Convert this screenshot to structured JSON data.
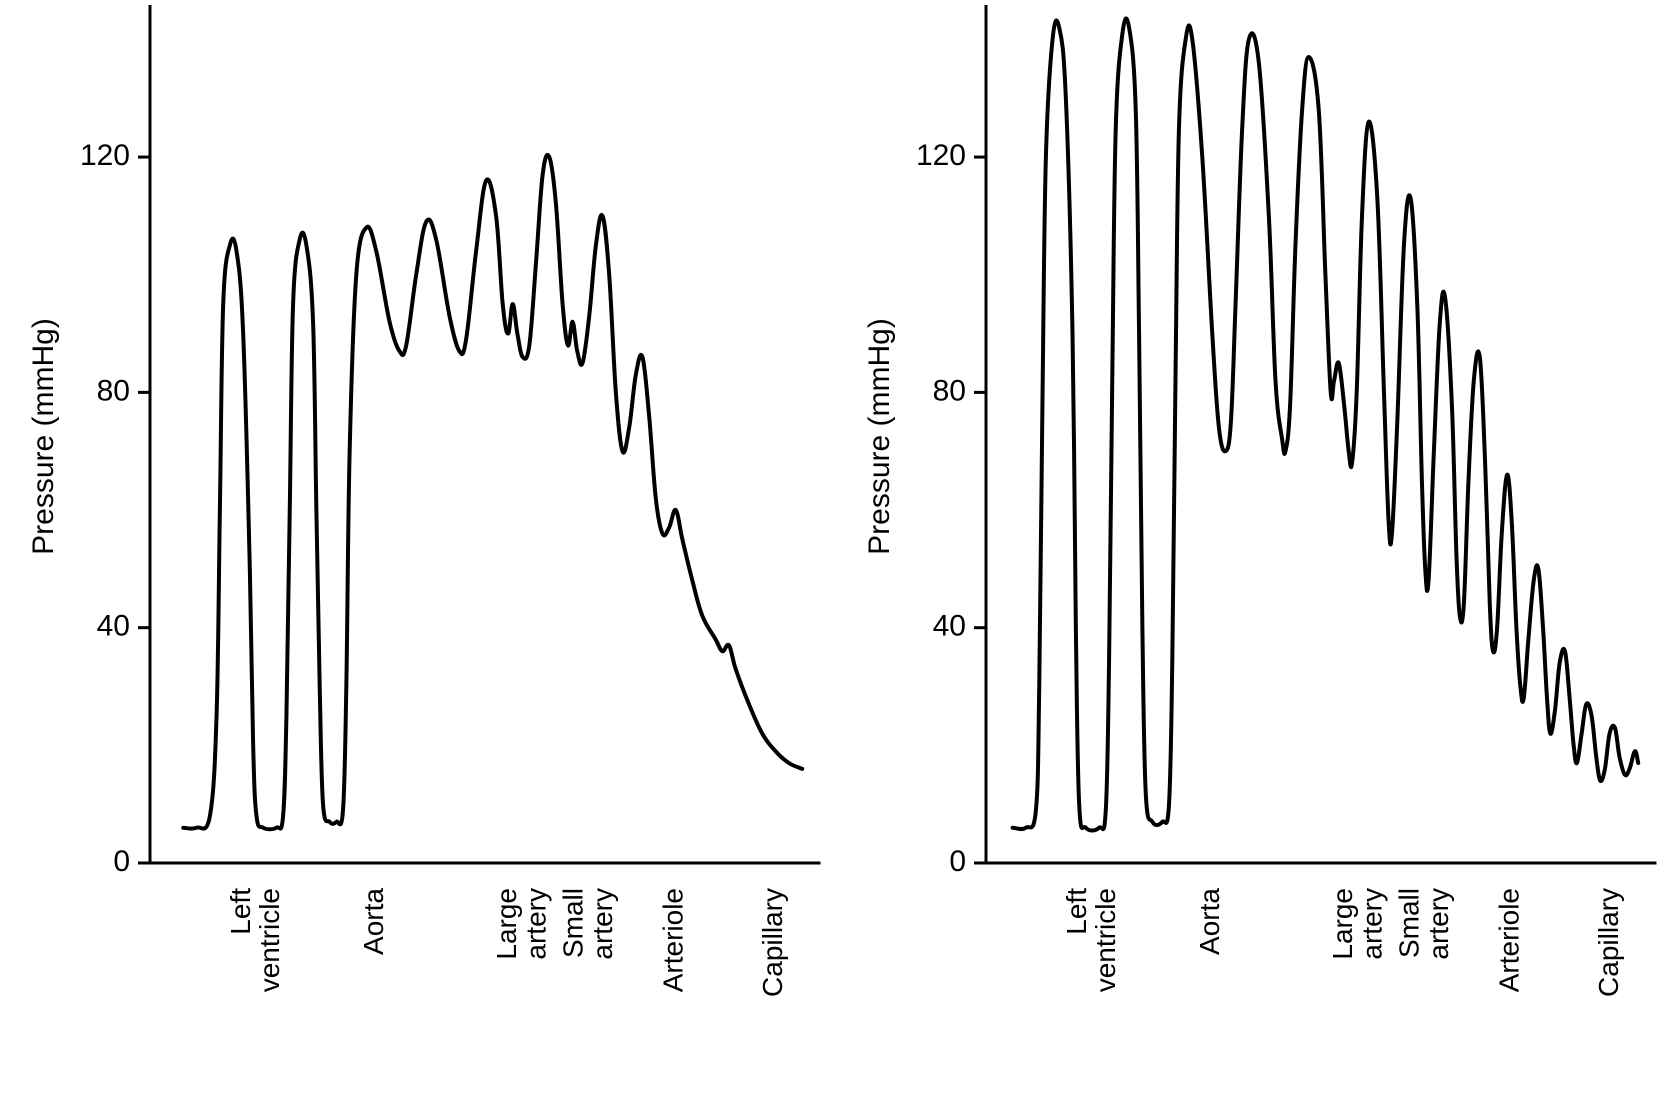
{
  "global": {
    "background_color": "#ffffff",
    "line_color": "#000000",
    "axis_color": "#000000",
    "tick_color": "#000000",
    "line_width": 4,
    "axis_width": 3,
    "tick_width": 3,
    "tick_length": 12,
    "axis_label_fontsize": 30,
    "tick_fontsize": 30,
    "xcat_fontsize": 28,
    "font_family": "Arial, Helvetica, sans-serif"
  },
  "left_chart": {
    "type": "line",
    "ylabel": "Pressure (mmHg)",
    "ylim": [
      0,
      145
    ],
    "yticks": [
      0,
      40,
      80,
      120
    ],
    "ytick_labels": [
      "0",
      "40",
      "80",
      "120"
    ],
    "xlim": [
      0,
      100
    ],
    "x_categories": [
      {
        "label": "Left\nventricle",
        "x": 15
      },
      {
        "label": "Aorta",
        "x": 35
      },
      {
        "label": "Large\nartery",
        "x": 55
      },
      {
        "label": "Small\nartery",
        "x": 65
      },
      {
        "label": "Arteriole",
        "x": 80
      },
      {
        "label": "Capillary",
        "x": 95
      }
    ],
    "series": [
      {
        "x": 5,
        "y": 6
      },
      {
        "x": 7,
        "y": 6
      },
      {
        "x": 9,
        "y": 8
      },
      {
        "x": 10,
        "y": 25
      },
      {
        "x": 10.5,
        "y": 60
      },
      {
        "x": 11,
        "y": 95
      },
      {
        "x": 12,
        "y": 105
      },
      {
        "x": 13,
        "y": 104
      },
      {
        "x": 14,
        "y": 90
      },
      {
        "x": 15,
        "y": 50
      },
      {
        "x": 15.5,
        "y": 20
      },
      {
        "x": 16,
        "y": 8
      },
      {
        "x": 17,
        "y": 6
      },
      {
        "x": 19,
        "y": 6
      },
      {
        "x": 20,
        "y": 8
      },
      {
        "x": 20.5,
        "y": 25
      },
      {
        "x": 21,
        "y": 60
      },
      {
        "x": 21.5,
        "y": 95
      },
      {
        "x": 22.5,
        "y": 106
      },
      {
        "x": 23.5,
        "y": 105
      },
      {
        "x": 24.5,
        "y": 92
      },
      {
        "x": 25,
        "y": 60
      },
      {
        "x": 25.5,
        "y": 30
      },
      {
        "x": 26,
        "y": 10
      },
      {
        "x": 27,
        "y": 7
      },
      {
        "x": 28,
        "y": 7
      },
      {
        "x": 29,
        "y": 9
      },
      {
        "x": 29.5,
        "y": 30
      },
      {
        "x": 30,
        "y": 70
      },
      {
        "x": 31,
        "y": 100
      },
      {
        "x": 32.5,
        "y": 108
      },
      {
        "x": 34,
        "y": 104
      },
      {
        "x": 36,
        "y": 92
      },
      {
        "x": 37.5,
        "y": 87
      },
      {
        "x": 38.5,
        "y": 88
      },
      {
        "x": 40,
        "y": 100
      },
      {
        "x": 41.5,
        "y": 109
      },
      {
        "x": 43,
        "y": 106
      },
      {
        "x": 45,
        "y": 93
      },
      {
        "x": 46.5,
        "y": 87
      },
      {
        "x": 47.5,
        "y": 89
      },
      {
        "x": 49,
        "y": 104
      },
      {
        "x": 50.5,
        "y": 116
      },
      {
        "x": 52,
        "y": 110
      },
      {
        "x": 53,
        "y": 95
      },
      {
        "x": 53.8,
        "y": 90
      },
      {
        "x": 54.5,
        "y": 95
      },
      {
        "x": 55.2,
        "y": 90
      },
      {
        "x": 56,
        "y": 86
      },
      {
        "x": 57,
        "y": 88
      },
      {
        "x": 58,
        "y": 102
      },
      {
        "x": 59,
        "y": 117
      },
      {
        "x": 60,
        "y": 120
      },
      {
        "x": 61,
        "y": 112
      },
      {
        "x": 62,
        "y": 95
      },
      {
        "x": 62.8,
        "y": 88
      },
      {
        "x": 63.5,
        "y": 92
      },
      {
        "x": 64.2,
        "y": 87
      },
      {
        "x": 65,
        "y": 85
      },
      {
        "x": 66,
        "y": 93
      },
      {
        "x": 67,
        "y": 105
      },
      {
        "x": 68,
        "y": 110
      },
      {
        "x": 69,
        "y": 100
      },
      {
        "x": 70,
        "y": 80
      },
      {
        "x": 71,
        "y": 70
      },
      {
        "x": 72,
        "y": 74
      },
      {
        "x": 73,
        "y": 83
      },
      {
        "x": 74,
        "y": 86
      },
      {
        "x": 75,
        "y": 76
      },
      {
        "x": 76,
        "y": 62
      },
      {
        "x": 77,
        "y": 56
      },
      {
        "x": 78,
        "y": 57
      },
      {
        "x": 79,
        "y": 60
      },
      {
        "x": 80,
        "y": 55
      },
      {
        "x": 81.5,
        "y": 48
      },
      {
        "x": 83,
        "y": 42
      },
      {
        "x": 85,
        "y": 38
      },
      {
        "x": 86,
        "y": 36
      },
      {
        "x": 87,
        "y": 37
      },
      {
        "x": 88,
        "y": 33
      },
      {
        "x": 90,
        "y": 27
      },
      {
        "x": 92,
        "y": 22
      },
      {
        "x": 94,
        "y": 19
      },
      {
        "x": 96,
        "y": 17
      },
      {
        "x": 98,
        "y": 16
      }
    ]
  },
  "right_chart": {
    "type": "line",
    "ylabel": "Pressure (mmHg)",
    "ylim": [
      0,
      145
    ],
    "yticks": [
      0,
      40,
      80,
      120
    ],
    "ytick_labels": [
      "0",
      "40",
      "80",
      "120"
    ],
    "xlim": [
      0,
      100
    ],
    "x_categories": [
      {
        "label": "Left\nventricle",
        "x": 15
      },
      {
        "label": "Aorta",
        "x": 35
      },
      {
        "label": "Large\nartery",
        "x": 55
      },
      {
        "label": "Small\nartery",
        "x": 65
      },
      {
        "label": "Arteriole",
        "x": 80
      },
      {
        "label": "Capillary",
        "x": 95
      }
    ],
    "series": [
      {
        "x": 4,
        "y": 6
      },
      {
        "x": 6,
        "y": 6
      },
      {
        "x": 7.5,
        "y": 9
      },
      {
        "x": 8,
        "y": 30
      },
      {
        "x": 8.5,
        "y": 80
      },
      {
        "x": 9,
        "y": 120
      },
      {
        "x": 10,
        "y": 140
      },
      {
        "x": 11,
        "y": 142
      },
      {
        "x": 12,
        "y": 130
      },
      {
        "x": 13,
        "y": 90
      },
      {
        "x": 13.5,
        "y": 40
      },
      {
        "x": 14,
        "y": 10
      },
      {
        "x": 15,
        "y": 6
      },
      {
        "x": 17,
        "y": 6
      },
      {
        "x": 18,
        "y": 9
      },
      {
        "x": 18.5,
        "y": 35
      },
      {
        "x": 19,
        "y": 85
      },
      {
        "x": 19.5,
        "y": 125
      },
      {
        "x": 20.5,
        "y": 141
      },
      {
        "x": 21.5,
        "y": 142
      },
      {
        "x": 22.5,
        "y": 128
      },
      {
        "x": 23,
        "y": 90
      },
      {
        "x": 23.5,
        "y": 40
      },
      {
        "x": 24,
        "y": 12
      },
      {
        "x": 25,
        "y": 7
      },
      {
        "x": 26.5,
        "y": 7
      },
      {
        "x": 27.5,
        "y": 10
      },
      {
        "x": 28,
        "y": 35
      },
      {
        "x": 28.5,
        "y": 85
      },
      {
        "x": 29,
        "y": 125
      },
      {
        "x": 30,
        "y": 140
      },
      {
        "x": 31,
        "y": 140
      },
      {
        "x": 32.5,
        "y": 120
      },
      {
        "x": 34,
        "y": 90
      },
      {
        "x": 35,
        "y": 74
      },
      {
        "x": 36,
        "y": 70
      },
      {
        "x": 36.8,
        "y": 75
      },
      {
        "x": 37.5,
        "y": 95
      },
      {
        "x": 38.5,
        "y": 125
      },
      {
        "x": 39.5,
        "y": 140
      },
      {
        "x": 41,
        "y": 136
      },
      {
        "x": 42.5,
        "y": 110
      },
      {
        "x": 43.5,
        "y": 82
      },
      {
        "x": 44.5,
        "y": 72
      },
      {
        "x": 45,
        "y": 70
      },
      {
        "x": 45.7,
        "y": 78
      },
      {
        "x": 46.5,
        "y": 105
      },
      {
        "x": 47.5,
        "y": 128
      },
      {
        "x": 48.5,
        "y": 137
      },
      {
        "x": 50,
        "y": 128
      },
      {
        "x": 51,
        "y": 100
      },
      {
        "x": 51.8,
        "y": 80
      },
      {
        "x": 52.3,
        "y": 82
      },
      {
        "x": 53,
        "y": 85
      },
      {
        "x": 53.8,
        "y": 78
      },
      {
        "x": 54.5,
        "y": 70
      },
      {
        "x": 55,
        "y": 68
      },
      {
        "x": 55.7,
        "y": 80
      },
      {
        "x": 56.5,
        "y": 110
      },
      {
        "x": 57.5,
        "y": 126
      },
      {
        "x": 58.8,
        "y": 113
      },
      {
        "x": 59.8,
        "y": 80
      },
      {
        "x": 60.5,
        "y": 58
      },
      {
        "x": 61,
        "y": 56
      },
      {
        "x": 61.8,
        "y": 75
      },
      {
        "x": 62.8,
        "y": 105
      },
      {
        "x": 63.8,
        "y": 113
      },
      {
        "x": 64.8,
        "y": 95
      },
      {
        "x": 65.5,
        "y": 65
      },
      {
        "x": 66,
        "y": 50
      },
      {
        "x": 66.5,
        "y": 48
      },
      {
        "x": 67.3,
        "y": 70
      },
      {
        "x": 68.2,
        "y": 92
      },
      {
        "x": 69,
        "y": 96
      },
      {
        "x": 70,
        "y": 78
      },
      {
        "x": 70.7,
        "y": 52
      },
      {
        "x": 71.2,
        "y": 42
      },
      {
        "x": 71.8,
        "y": 44
      },
      {
        "x": 72.5,
        "y": 65
      },
      {
        "x": 73.3,
        "y": 82
      },
      {
        "x": 74.2,
        "y": 86
      },
      {
        "x": 75,
        "y": 68
      },
      {
        "x": 75.7,
        "y": 44
      },
      {
        "x": 76.2,
        "y": 36
      },
      {
        "x": 76.8,
        "y": 40
      },
      {
        "x": 77.5,
        "y": 56
      },
      {
        "x": 78.3,
        "y": 66
      },
      {
        "x": 79,
        "y": 58
      },
      {
        "x": 79.7,
        "y": 40
      },
      {
        "x": 80.3,
        "y": 30
      },
      {
        "x": 80.8,
        "y": 28
      },
      {
        "x": 81.5,
        "y": 38
      },
      {
        "x": 82.3,
        "y": 48
      },
      {
        "x": 83,
        "y": 50
      },
      {
        "x": 83.7,
        "y": 40
      },
      {
        "x": 84.3,
        "y": 28
      },
      {
        "x": 84.8,
        "y": 22
      },
      {
        "x": 85.5,
        "y": 26
      },
      {
        "x": 86.2,
        "y": 34
      },
      {
        "x": 87,
        "y": 36
      },
      {
        "x": 87.7,
        "y": 28
      },
      {
        "x": 88.3,
        "y": 20
      },
      {
        "x": 88.8,
        "y": 17
      },
      {
        "x": 89.5,
        "y": 22
      },
      {
        "x": 90.2,
        "y": 27
      },
      {
        "x": 91,
        "y": 25
      },
      {
        "x": 91.7,
        "y": 18
      },
      {
        "x": 92.3,
        "y": 14
      },
      {
        "x": 93,
        "y": 16
      },
      {
        "x": 93.7,
        "y": 22
      },
      {
        "x": 94.5,
        "y": 23
      },
      {
        "x": 95.2,
        "y": 18
      },
      {
        "x": 96,
        "y": 15
      },
      {
        "x": 96.7,
        "y": 16
      },
      {
        "x": 97.5,
        "y": 19
      },
      {
        "x": 98,
        "y": 17
      }
    ]
  }
}
